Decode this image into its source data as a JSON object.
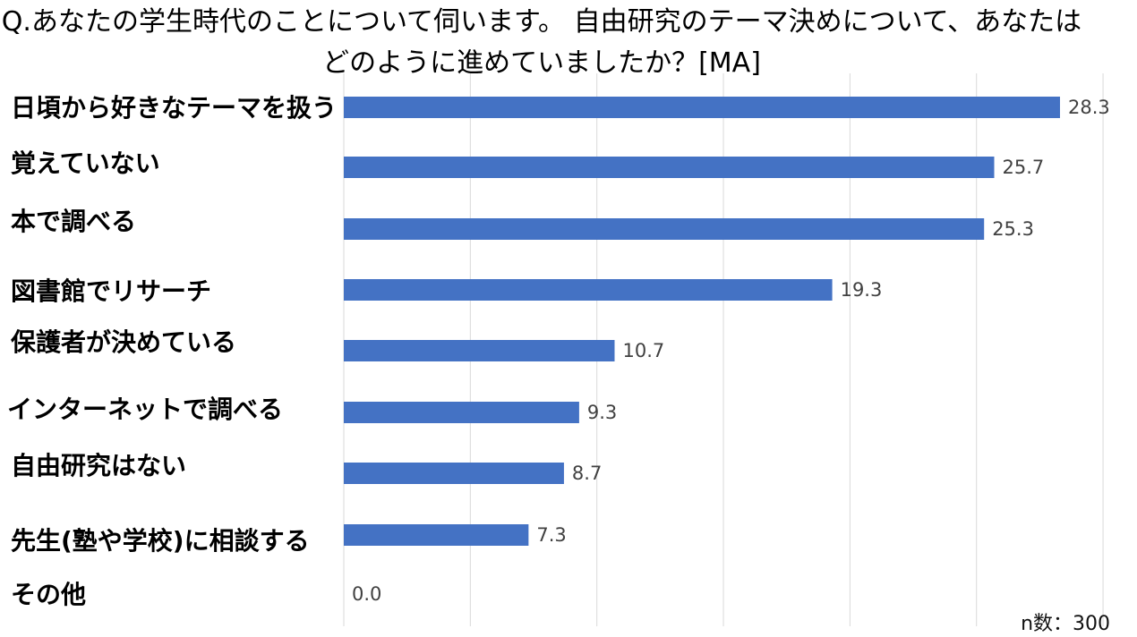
{
  "title": "Q.あなたの学生時代のことについて伺います。 自由研究のテーマ決めについて、あなたはどのように進めていましたか？[MA]",
  "note": "n数：300",
  "colors": {
    "bar": "#4472C4",
    "grid": "#D9D9D9"
  },
  "chart_data": {
    "type": "bar",
    "orientation": "horizontal",
    "title": "Q.あなたの学生時代のことについて伺います。 自由研究のテーマ決めについて、あなたはどのように進めていましたか？[MA]",
    "categories": [
      "日頃から好きなテーマを扱う",
      "覚えていない",
      "本で調べる",
      "図書館でリサーチ",
      "保護者が決めている",
      "インターネットで調べる",
      "自由研究はない",
      "先生(塾や学校)に相談する",
      "その他"
    ],
    "values": [
      28.3,
      25.7,
      25.3,
      19.3,
      10.7,
      9.3,
      8.7,
      7.3,
      0.0
    ],
    "value_labels": [
      "28.3",
      "25.7",
      "25.3",
      "19.3",
      "10.7",
      "9.3",
      "8.7",
      "7.3",
      "0.0"
    ],
    "xlim": [
      0,
      30
    ],
    "grid": true
  }
}
